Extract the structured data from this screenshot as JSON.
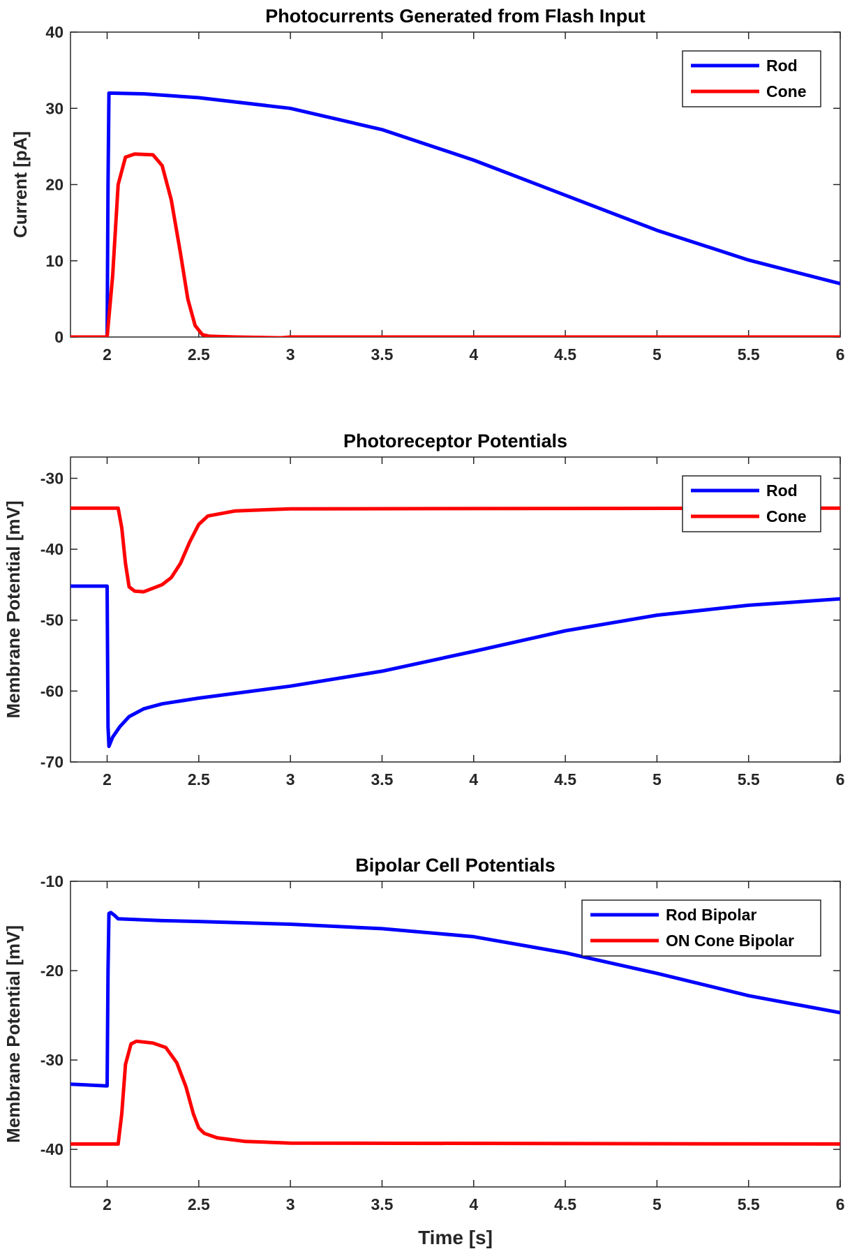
{
  "chart_data": [
    {
      "type": "line",
      "title": "Photocurrents Generated from Flash Input",
      "xlabel": "",
      "ylabel": "Current [pA]",
      "xlim": [
        1.8,
        6
      ],
      "ylim": [
        0,
        40
      ],
      "xticks": [
        "2",
        "2.5",
        "3",
        "3.5",
        "4",
        "4.5",
        "5",
        "5.5",
        "6"
      ],
      "yticks": [
        "0",
        "10",
        "20",
        "30",
        "40"
      ],
      "legend": "top-right",
      "series": [
        {
          "name": "Rod",
          "color": "#0000ff",
          "x": [
            1.8,
            1.99,
            2.0,
            2.005,
            2.01,
            2.2,
            2.5,
            3.0,
            3.5,
            4.0,
            4.5,
            5.0,
            5.5,
            6.0
          ],
          "y": [
            0,
            0,
            -0.3,
            20,
            32,
            31.9,
            31.4,
            30,
            27.2,
            23.2,
            18.6,
            14,
            10.1,
            7
          ]
        },
        {
          "name": "Cone",
          "color": "#ff0000",
          "x": [
            1.8,
            2.0,
            2.03,
            2.06,
            2.1,
            2.15,
            2.25,
            2.3,
            2.35,
            2.4,
            2.44,
            2.48,
            2.52,
            2.56,
            2.7,
            2.95,
            3.0,
            6.0
          ],
          "y": [
            0,
            0,
            8,
            20,
            23.6,
            24,
            23.9,
            22.5,
            18,
            11,
            5,
            1.5,
            0.3,
            0.1,
            0,
            -0.1,
            0,
            0
          ]
        }
      ]
    },
    {
      "type": "line",
      "title": "Photoreceptor Potentials",
      "xlabel": "",
      "ylabel": "Membrane Potential [mV]",
      "xlim": [
        1.8,
        6
      ],
      "ylim": [
        -70,
        -27
      ],
      "xticks": [
        "2",
        "2.5",
        "3",
        "3.5",
        "4",
        "4.5",
        "5",
        "5.5",
        "6"
      ],
      "yticks": [
        "-70",
        "-60",
        "-50",
        "-40",
        "-30"
      ],
      "legend": "top-right",
      "series": [
        {
          "name": "Rod",
          "color": "#0000ff",
          "x": [
            1.8,
            2.0,
            2.005,
            2.01,
            2.03,
            2.07,
            2.12,
            2.2,
            2.3,
            2.5,
            3.0,
            3.5,
            4.0,
            4.5,
            5.0,
            5.5,
            6.0
          ],
          "y": [
            -45.2,
            -45.2,
            -65,
            -67.8,
            -66.5,
            -65,
            -63.6,
            -62.5,
            -61.8,
            -61,
            -59.3,
            -57.2,
            -54.4,
            -51.5,
            -49.3,
            -47.9,
            -47
          ]
        },
        {
          "name": "Cone",
          "color": "#ff0000",
          "x": [
            1.8,
            2.06,
            2.08,
            2.1,
            2.12,
            2.15,
            2.2,
            2.3,
            2.35,
            2.4,
            2.45,
            2.5,
            2.55,
            2.7,
            3.0,
            6.0
          ],
          "y": [
            -34.2,
            -34.2,
            -37,
            -42,
            -45.3,
            -45.9,
            -46,
            -45,
            -44,
            -42,
            -39,
            -36.5,
            -35.3,
            -34.6,
            -34.3,
            -34.2
          ]
        }
      ]
    },
    {
      "type": "line",
      "title": "Bipolar Cell Potentials",
      "xlabel": "Time [s]",
      "ylabel": "Membrane Potential [mV]",
      "xlim": [
        1.8,
        6
      ],
      "ylim": [
        -44.2,
        -10
      ],
      "xticks": [
        "2",
        "2.5",
        "3",
        "3.5",
        "4",
        "4.5",
        "5",
        "5.5",
        "6"
      ],
      "yticks": [
        "-40",
        "-30",
        "-20",
        "-10"
      ],
      "legend": "top-right",
      "series": [
        {
          "name": "Rod Bipolar",
          "color": "#0000ff",
          "x": [
            1.8,
            2.0,
            2.005,
            2.01,
            2.02,
            2.04,
            2.06,
            2.3,
            2.5,
            3.0,
            3.5,
            4.0,
            4.5,
            5.0,
            5.5,
            6.0
          ],
          "y": [
            -32.7,
            -32.9,
            -20,
            -13.6,
            -13.5,
            -13.8,
            -14.2,
            -14.4,
            -14.5,
            -14.8,
            -15.3,
            -16.2,
            -18,
            -20.3,
            -22.8,
            -24.7
          ]
        },
        {
          "name": "ON Cone Bipolar",
          "color": "#ff0000",
          "x": [
            1.8,
            2.06,
            2.08,
            2.1,
            2.13,
            2.16,
            2.25,
            2.32,
            2.38,
            2.43,
            2.47,
            2.5,
            2.53,
            2.6,
            2.75,
            3.0,
            6.0
          ],
          "y": [
            -39.4,
            -39.4,
            -36,
            -30.5,
            -28.2,
            -27.9,
            -28.1,
            -28.6,
            -30.3,
            -33,
            -36,
            -37.6,
            -38.2,
            -38.7,
            -39.1,
            -39.3,
            -39.4
          ]
        }
      ]
    }
  ]
}
